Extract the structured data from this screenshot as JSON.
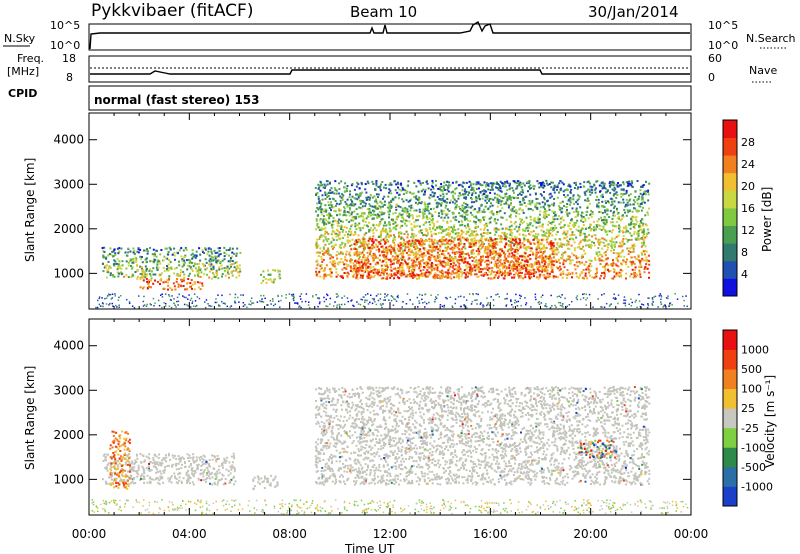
{
  "header": {
    "station": "Pykkvibaer (fitACF)",
    "beam": "Beam 10",
    "date": "30/Jan/2014"
  },
  "status_panel": {
    "nsky_label": "N.Sky",
    "nsky_ticks": [
      "10^5",
      "10^0"
    ],
    "nsearch_label": "N.Search",
    "nsearch_ticks": [
      "10^5",
      "10^0"
    ],
    "freq_label": "Freq.",
    "freq_unit": "[MHz]",
    "freq_ticks": [
      "18",
      "8"
    ],
    "nave_label": "Nave",
    "nave_ticks": [
      "60",
      "0"
    ],
    "cpid_label": "CPID",
    "cpid_value": "normal (fast stereo) 153"
  },
  "chart_data": [
    {
      "type": "heatmap",
      "name": "power",
      "ylabel": "Slant Range [km]",
      "xlim": [
        0,
        24
      ],
      "ylim": [
        200,
        4600
      ],
      "y_ticks": [
        "1000",
        "2000",
        "3000",
        "4000"
      ],
      "y_tick_values": [
        1000,
        2000,
        3000,
        4000
      ],
      "colorbar": {
        "label": "Power [dB]",
        "tick_labels": [
          "4",
          "8",
          "12",
          "16",
          "20",
          "24",
          "28"
        ],
        "colors": [
          "#1010e0",
          "#2050b0",
          "#307a70",
          "#4aa050",
          "#80c840",
          "#c8d840",
          "#f0c030",
          "#f08020",
          "#f04010",
          "#e81010"
        ]
      },
      "regions": [
        {
          "t0": 0.5,
          "t1": 6.0,
          "r0": 900,
          "r1": 1600,
          "level": "low"
        },
        {
          "t0": 2.0,
          "t1": 4.5,
          "r0": 650,
          "r1": 900,
          "level": "high"
        },
        {
          "t0": 6.8,
          "t1": 7.6,
          "r0": 800,
          "r1": 1100,
          "level": "mid"
        },
        {
          "t0": 9.0,
          "t1": 22.3,
          "r0": 900,
          "r1": 3100,
          "level": "mix"
        },
        {
          "t0": 10.5,
          "t1": 18.5,
          "r0": 900,
          "r1": 1800,
          "level": "high"
        }
      ]
    },
    {
      "type": "heatmap",
      "name": "velocity",
      "ylabel": "Slant Range [km]",
      "xlabel": "Time UT",
      "xlim": [
        0,
        24
      ],
      "ylim": [
        200,
        4600
      ],
      "x_ticks": [
        "00:00",
        "04:00",
        "08:00",
        "12:00",
        "16:00",
        "20:00",
        "00:00"
      ],
      "x_tick_values": [
        0,
        4,
        8,
        12,
        16,
        20,
        24
      ],
      "y_ticks": [
        "1000",
        "2000",
        "3000",
        "4000"
      ],
      "y_tick_values": [
        1000,
        2000,
        3000,
        4000
      ],
      "colorbar": {
        "label": "Velocity [m s⁻¹]",
        "tick_labels": [
          "1000",
          "500",
          "100",
          "25",
          "-25",
          "-100",
          "-500",
          "-1000"
        ],
        "colors": [
          "#1a3fc8",
          "#2a6fa8",
          "#2e8a4a",
          "#7ed040",
          "#c8c8c0",
          "#f0c030",
          "#f08020",
          "#f04010",
          "#e81010"
        ]
      },
      "regions": [
        {
          "t0": 0.5,
          "t1": 5.8,
          "r0": 900,
          "r1": 1600,
          "level": "grey"
        },
        {
          "t0": 6.5,
          "t1": 7.5,
          "r0": 800,
          "r1": 1100,
          "level": "grey"
        },
        {
          "t0": 9.0,
          "t1": 22.3,
          "r0": 900,
          "r1": 3100,
          "level": "grey"
        },
        {
          "t0": 0.8,
          "t1": 1.6,
          "r0": 800,
          "r1": 2100,
          "level": "orange"
        },
        {
          "t0": 19.5,
          "t1": 21.0,
          "r0": 1500,
          "r1": 1900,
          "level": "mixed"
        }
      ]
    }
  ],
  "colors": {
    "axis": "#000000",
    "grey_scatter": "#c4c4bc"
  }
}
